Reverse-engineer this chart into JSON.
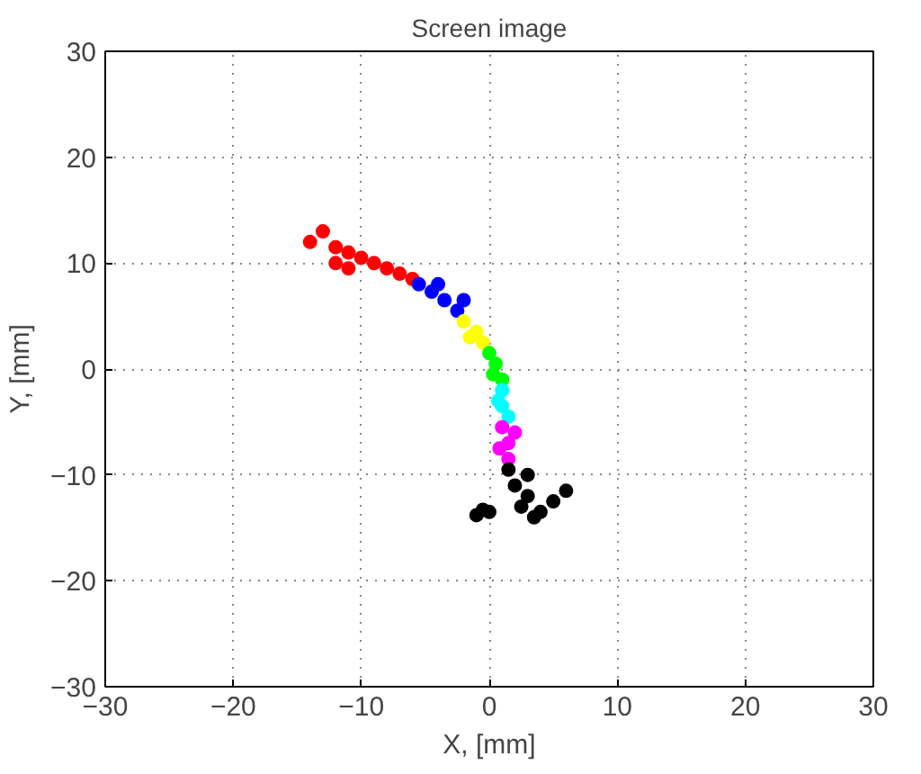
{
  "chart_data": {
    "type": "scatter",
    "title": "Screen image",
    "xlabel": "X, [mm]",
    "ylabel": "Y, [mm]",
    "xlim": [
      -30,
      30
    ],
    "ylim": [
      -30,
      30
    ],
    "xticks": [
      -30,
      -20,
      -10,
      0,
      10,
      20,
      30
    ],
    "yticks": [
      -30,
      -20,
      -10,
      0,
      10,
      20,
      30
    ],
    "grid": true,
    "marker": "circle",
    "series": [
      {
        "color": "#ff0000",
        "x": [
          -14,
          -13,
          -12,
          -12,
          -11,
          -11,
          -10,
          -9,
          -8,
          -7,
          -6
        ],
        "values": [
          12,
          13,
          11.5,
          10,
          11,
          9.5,
          10.5,
          10,
          9.5,
          9,
          8.5
        ]
      },
      {
        "color": "#0000ff",
        "x": [
          -5.5,
          -4.5,
          -4,
          -3.5,
          -2.5,
          -2
        ],
        "values": [
          8,
          7.3,
          8,
          6.5,
          5.5,
          6.5
        ]
      },
      {
        "color": "#ffff00",
        "x": [
          -2,
          -1.5,
          -1,
          -0.5
        ],
        "values": [
          4.5,
          3,
          3.5,
          2.5
        ]
      },
      {
        "color": "#00ff00",
        "x": [
          0,
          0.5,
          0.3,
          1
        ],
        "values": [
          1.5,
          0.5,
          -0.5,
          -1
        ]
      },
      {
        "color": "#00ffff",
        "x": [
          1,
          0.7,
          1,
          1.5
        ],
        "values": [
          -2,
          -3,
          -3.5,
          -4.5
        ]
      },
      {
        "color": "#ff00ff",
        "x": [
          1,
          2,
          1.5,
          0.8,
          1.5
        ],
        "values": [
          -5.5,
          -6,
          -7,
          -7.5,
          -8.5
        ]
      },
      {
        "color": "#000000",
        "x": [
          1.5,
          3,
          2,
          3,
          4,
          5,
          6,
          2.5,
          3.5,
          0,
          -1,
          -0.5
        ],
        "values": [
          -9.5,
          -10,
          -11,
          -12,
          -13.5,
          -12.5,
          -11.5,
          -13,
          -14,
          -13.5,
          -13.8,
          -13.3
        ]
      }
    ]
  }
}
